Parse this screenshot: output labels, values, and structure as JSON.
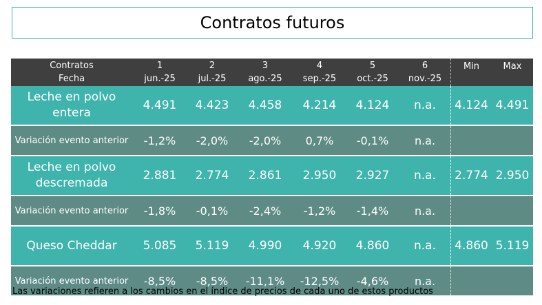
{
  "title": "Contratos futuros",
  "header": {
    "col0_line1": "Contratos",
    "col0_line2": "Fecha",
    "contracts": [
      {
        "num": "1",
        "date": "jun.-25"
      },
      {
        "num": "2",
        "date": "jul.-25"
      },
      {
        "num": "3",
        "date": "ago.-25"
      },
      {
        "num": "4",
        "date": "sep.-25"
      },
      {
        "num": "5",
        "date": "oct.-25"
      },
      {
        "num": "6",
        "date": "nov.-25"
      }
    ],
    "min": "Min",
    "max": "Max"
  },
  "products": [
    {
      "name_line1": "Leche en polvo",
      "name_line2": "entera",
      "values": [
        "4.491",
        "4.423",
        "4.458",
        "4.214",
        "4.124",
        "n.a."
      ],
      "min": "4.124",
      "max": "4.491",
      "variation_label": "Variación evento anterior",
      "variations": [
        "-1,2%",
        "-2,0%",
        "-2,0%",
        "0,7%",
        "-0,1%",
        "n.a."
      ]
    },
    {
      "name_line1": "Leche en polvo",
      "name_line2": "descremada",
      "values": [
        "2.881",
        "2.774",
        "2.861",
        "2.950",
        "2.927",
        "n.a."
      ],
      "min": "2.774",
      "max": "2.950",
      "variation_label": "Variación evento anterior",
      "variations": [
        "-1,8%",
        "-0,1%",
        "-2,4%",
        "-1,2%",
        "-1,4%",
        "n.a."
      ]
    },
    {
      "name_line1": "Queso Cheddar",
      "values": [
        "5.085",
        "5.119",
        "4.990",
        "4.920",
        "4.860",
        "n.a."
      ],
      "min": "4.860",
      "max": "5.119",
      "variation_label": "Variación evento anterior",
      "variations": [
        "-8,5%",
        "-8,5%",
        "-11,1%",
        "-12,5%",
        "-4,6%",
        "n.a."
      ]
    }
  ],
  "footnote": "Las variaciones refieren a los cambios en el índice de precios de cada uno de estos productos",
  "colors": {
    "header_bg": "#403f3f",
    "product_bg": "#3fb4ad",
    "variation_bg": "#5e8b84"
  }
}
